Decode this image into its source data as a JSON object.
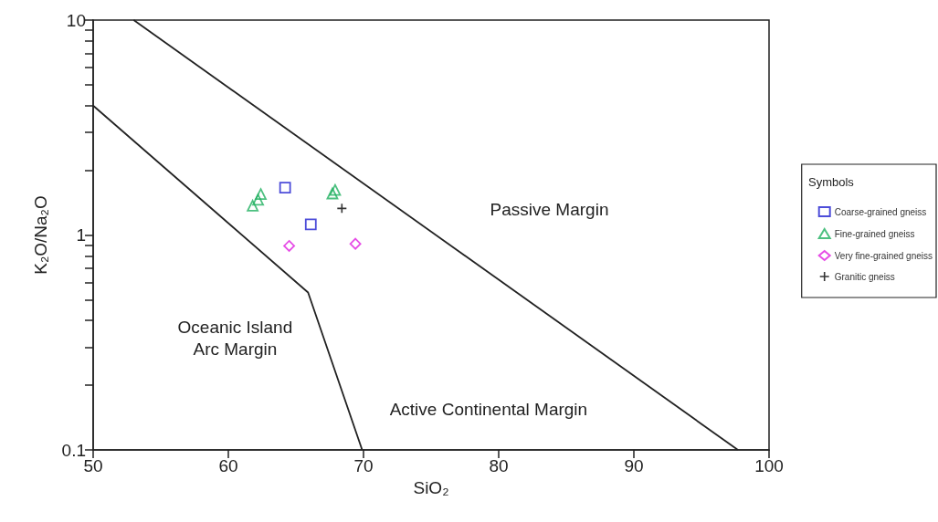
{
  "chart_data": {
    "type": "scatter",
    "xlabel": "SiO₂",
    "ylabel": "K₂O/Na₂O",
    "legend_title": "Symbols",
    "xlim": [
      50,
      100
    ],
    "xticks": [
      50,
      60,
      70,
      80,
      90,
      100
    ],
    "ylim": [
      0.1,
      10
    ],
    "log": "y",
    "yticks": [
      0.1,
      {
        "value": 0.2,
        "label": null
      },
      {
        "value": 0.3,
        "label": null
      },
      {
        "value": 0.4,
        "label": null
      },
      {
        "value": 0.5,
        "label": null
      },
      {
        "value": 0.6,
        "label": null
      },
      {
        "value": 0.7,
        "label": null
      },
      {
        "value": 0.8,
        "label": null
      },
      {
        "value": 0.9,
        "label": null
      },
      1,
      {
        "value": 2,
        "label": null
      },
      {
        "value": 3,
        "label": null
      },
      {
        "value": 4,
        "label": null
      },
      {
        "value": 5,
        "label": null
      },
      {
        "value": 6,
        "label": null
      },
      {
        "value": 7,
        "label": null
      },
      {
        "value": 8,
        "label": null
      },
      {
        "value": 9,
        "label": null
      },
      10
    ],
    "grid": false,
    "legend": "right",
    "series": [
      {
        "name": "Coarse-grained gneiss",
        "color": "#2020d0",
        "marker": "square",
        "x": [
          64.2,
          66.1
        ],
        "values": [
          1.66,
          1.12
        ]
      },
      {
        "name": "Fine-grained gneiss",
        "color": "#20b060",
        "marker": "triangle",
        "x": [
          61.8,
          62.2,
          62.4,
          67.7,
          67.9
        ],
        "values": [
          1.37,
          1.46,
          1.55,
          1.56,
          1.62
        ]
      },
      {
        "name": "Very fine-grained gneiss",
        "color": "#e020e0",
        "marker": "diamond",
        "x": [
          64.5,
          69.4
        ],
        "values": [
          0.89,
          0.91
        ]
      },
      {
        "name": "Granitic gneiss",
        "color": "#000000",
        "marker": "cross",
        "x": [
          68.4
        ],
        "values": [
          1.33
        ]
      },
      {
        "type": "line",
        "color": "#222222",
        "marker": "none",
        "x": [
          53,
          97.7
        ],
        "values": [
          10,
          0.1
        ]
      },
      {
        "type": "line",
        "color": "#222222",
        "marker": "none",
        "x": [
          50,
          65.9,
          69.9
        ],
        "values": [
          4,
          0.54,
          0.1
        ]
      }
    ],
    "annotations": [
      "Passive Margin",
      "Oceanic Island\nArc Margin",
      "Active Continental Margin"
    ]
  }
}
